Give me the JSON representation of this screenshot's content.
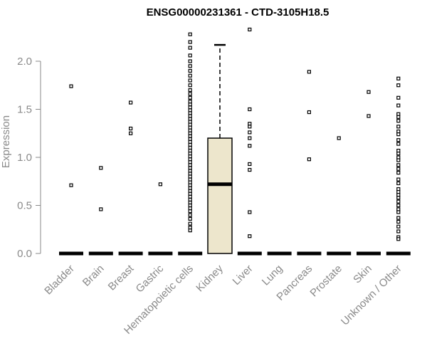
{
  "chart_data": {
    "type": "box",
    "title": "ENSG00000231361 - CTD-3105H18.5",
    "xlabel": "",
    "ylabel": "Expression",
    "ylim": [
      0,
      2.2
    ],
    "yticks": [
      0.0,
      0.5,
      1.0,
      1.5,
      2.0
    ],
    "ytick_labels": [
      "0.0",
      "0.5",
      "1.0",
      "1.5",
      "2.0"
    ],
    "grid": false,
    "box_fill": "#ede6cc",
    "categories": [
      "Bladder",
      "Brain",
      "Breast",
      "Gastric",
      "Hematopoietic cells",
      "Kidney",
      "Liver",
      "Lung",
      "Pancreas",
      "Prostate",
      "Skin",
      "Unknown / Other"
    ],
    "boxes": [
      {
        "category": "Bladder",
        "q1": 0,
        "median": 0,
        "q3": 0,
        "whisker_low": 0,
        "whisker_high": 0
      },
      {
        "category": "Brain",
        "q1": 0,
        "median": 0,
        "q3": 0,
        "whisker_low": 0,
        "whisker_high": 0
      },
      {
        "category": "Breast",
        "q1": 0,
        "median": 0,
        "q3": 0,
        "whisker_low": 0,
        "whisker_high": 0
      },
      {
        "category": "Gastric",
        "q1": 0,
        "median": 0,
        "q3": 0,
        "whisker_low": 0,
        "whisker_high": 0
      },
      {
        "category": "Hematopoietic cells",
        "q1": 0,
        "median": 0,
        "q3": 0,
        "whisker_low": 0,
        "whisker_high": 0
      },
      {
        "category": "Kidney",
        "q1": 0,
        "median": 0.72,
        "q3": 1.2,
        "whisker_low": 0,
        "whisker_high": 2.17
      },
      {
        "category": "Liver",
        "q1": 0,
        "median": 0,
        "q3": 0,
        "whisker_low": 0,
        "whisker_high": 0
      },
      {
        "category": "Lung",
        "q1": 0,
        "median": 0,
        "q3": 0,
        "whisker_low": 0,
        "whisker_high": 0
      },
      {
        "category": "Pancreas",
        "q1": 0,
        "median": 0,
        "q3": 0,
        "whisker_low": 0,
        "whisker_high": 0
      },
      {
        "category": "Prostate",
        "q1": 0,
        "median": 0,
        "q3": 0,
        "whisker_low": 0,
        "whisker_high": 0
      },
      {
        "category": "Skin",
        "q1": 0,
        "median": 0,
        "q3": 0,
        "whisker_low": 0,
        "whisker_high": 0
      },
      {
        "category": "Unknown / Other",
        "q1": 0,
        "median": 0,
        "q3": 0,
        "whisker_low": 0,
        "whisker_high": 0
      }
    ],
    "outliers": [
      {
        "category": "Bladder",
        "values": [
          1.74,
          0.71
        ]
      },
      {
        "category": "Brain",
        "values": [
          0.89,
          0.46
        ]
      },
      {
        "category": "Breast",
        "values": [
          1.57,
          1.3,
          1.25
        ]
      },
      {
        "category": "Gastric",
        "values": [
          0.72
        ]
      },
      {
        "category": "Hematopoietic cells",
        "values": [
          2.28,
          2.2,
          2.14,
          2.06,
          2.0,
          1.95,
          1.9,
          1.85,
          1.8,
          1.75,
          1.7,
          1.66,
          1.62,
          1.58,
          1.55,
          1.52,
          1.49,
          1.46,
          1.43,
          1.4,
          1.37,
          1.34,
          1.31,
          1.28,
          1.25,
          1.22,
          1.19,
          1.16,
          1.13,
          1.1,
          1.07,
          1.04,
          1.01,
          0.98,
          0.95,
          0.92,
          0.89,
          0.86,
          0.83,
          0.8,
          0.77,
          0.74,
          0.71,
          0.68,
          0.65,
          0.62,
          0.59,
          0.56,
          0.53,
          0.5,
          0.47,
          0.44,
          0.4,
          0.36,
          0.31,
          0.27,
          0.24
        ]
      },
      {
        "category": "Liver",
        "values": [
          2.33,
          1.5,
          1.35,
          1.32,
          1.26,
          1.2,
          1.12,
          0.93,
          0.87,
          0.43,
          0.18
        ]
      },
      {
        "category": "Pancreas",
        "values": [
          1.89,
          1.47,
          0.98
        ]
      },
      {
        "category": "Prostate",
        "values": [
          1.2
        ]
      },
      {
        "category": "Skin",
        "values": [
          1.68,
          1.43
        ]
      },
      {
        "category": "Unknown / Other",
        "values": [
          1.82,
          1.75,
          1.62,
          1.54,
          1.45,
          1.42,
          1.38,
          1.32,
          1.27,
          1.24,
          1.18,
          1.14,
          1.07,
          1.04,
          1.0,
          0.97,
          0.92,
          0.88,
          0.84,
          0.77,
          0.73,
          0.67,
          0.64,
          0.61,
          0.58,
          0.54,
          0.5,
          0.46,
          0.43,
          0.37,
          0.33,
          0.28,
          0.23,
          0.17,
          0.15
        ]
      }
    ]
  }
}
